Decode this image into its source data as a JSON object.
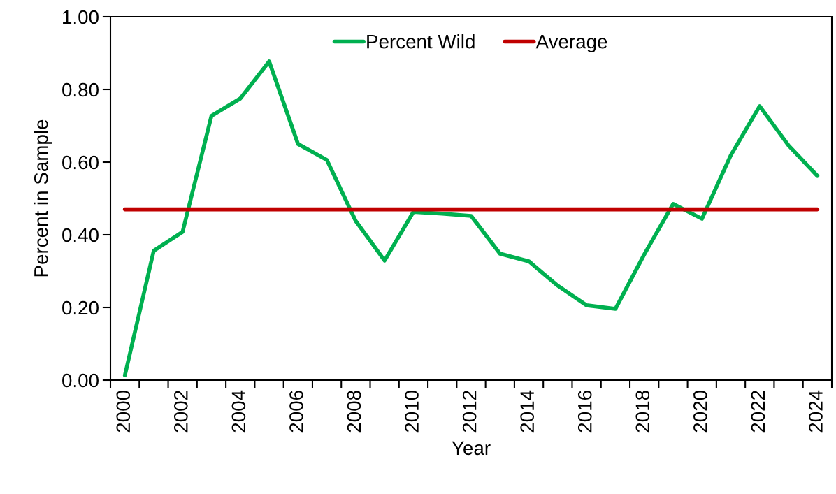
{
  "chart_data": {
    "type": "line",
    "xlabel": "Year",
    "ylabel": "Percent in Sample",
    "categories": [
      "2000",
      null,
      "2002",
      null,
      "2004",
      null,
      "2006",
      null,
      "2008",
      null,
      "2010",
      null,
      "2012",
      null,
      "2014",
      null,
      "2016",
      null,
      "2018",
      null,
      "2020",
      null,
      "2022",
      null,
      "2024"
    ],
    "series": [
      {
        "name": "Percent Wild",
        "color": "#00b050",
        "values": [
          0.013,
          0.356,
          0.408,
          0.727,
          0.775,
          0.877,
          0.65,
          0.606,
          0.438,
          0.329,
          0.463,
          0.458,
          0.452,
          0.348,
          0.327,
          0.26,
          0.206,
          0.196,
          0.346,
          0.485,
          0.444,
          0.619,
          0.754,
          0.646,
          0.562
        ]
      },
      {
        "name": "Average",
        "color": "#c00000",
        "values": [
          0.47,
          0.47,
          0.47,
          0.47,
          0.47,
          0.47,
          0.47,
          0.47,
          0.47,
          0.47,
          0.47,
          0.47,
          0.47,
          0.47,
          0.47,
          0.47,
          0.47,
          0.47,
          0.47,
          0.47,
          0.47,
          0.47,
          0.47,
          0.47,
          0.47
        ]
      }
    ],
    "ylim": [
      0,
      1
    ],
    "yticks": [
      {
        "value": 0,
        "label": "0.00"
      },
      {
        "value": 0.2,
        "label": "0.20"
      },
      {
        "value": 0.4,
        "label": "0.40"
      },
      {
        "value": 0.6,
        "label": "0.60"
      },
      {
        "value": 0.8,
        "label": "0.80"
      },
      {
        "value": 1,
        "label": "1.00"
      }
    ],
    "legend": "top",
    "grid": false,
    "marker": "none",
    "line_style": "solid"
  }
}
